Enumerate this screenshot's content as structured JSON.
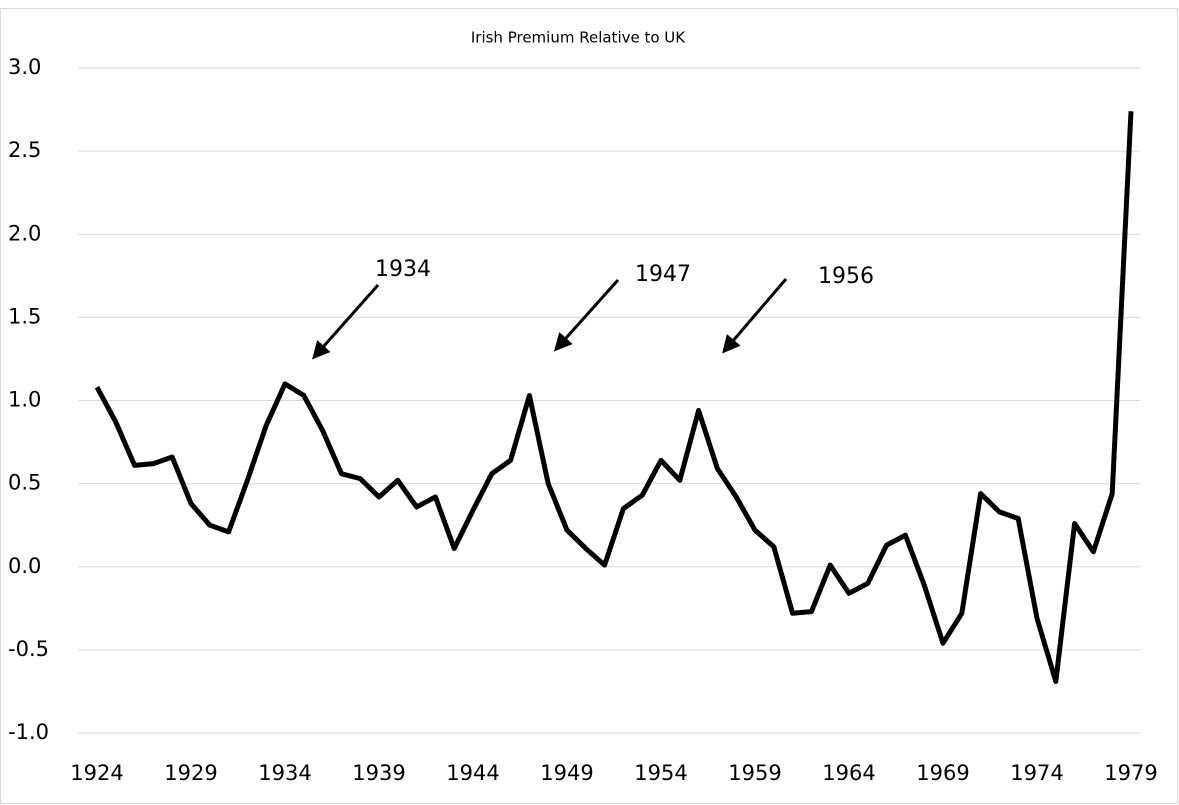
{
  "chart_data": {
    "type": "line",
    "title": "Irish Premium Relative to UK",
    "x": [
      1924,
      1925,
      1926,
      1927,
      1928,
      1929,
      1930,
      1931,
      1932,
      1933,
      1934,
      1935,
      1936,
      1937,
      1938,
      1939,
      1940,
      1941,
      1942,
      1943,
      1944,
      1945,
      1946,
      1947,
      1948,
      1949,
      1950,
      1951,
      1952,
      1953,
      1954,
      1955,
      1956,
      1957,
      1958,
      1959,
      1960,
      1961,
      1962,
      1963,
      1964,
      1965,
      1966,
      1967,
      1968,
      1969,
      1970,
      1971,
      1972,
      1973,
      1974,
      1975,
      1976,
      1977,
      1978,
      1979
    ],
    "values": [
      1.08,
      0.87,
      0.61,
      0.62,
      0.66,
      0.38,
      0.25,
      0.21,
      0.52,
      0.85,
      1.1,
      1.03,
      0.82,
      0.56,
      0.53,
      0.42,
      0.52,
      0.36,
      0.42,
      0.11,
      0.34,
      0.56,
      0.64,
      1.03,
      0.5,
      0.22,
      0.11,
      0.01,
      0.35,
      0.43,
      0.64,
      0.52,
      0.94,
      0.59,
      0.42,
      0.22,
      0.12,
      -0.28,
      -0.27,
      0.01,
      -0.16,
      -0.1,
      0.13,
      0.19,
      -0.11,
      -0.46,
      -0.28,
      0.44,
      0.33,
      0.29,
      -0.31,
      -0.69,
      0.26,
      0.09,
      0.44,
      2.74
    ],
    "color": "#000000",
    "xlim": [
      1923,
      1980
    ],
    "xticks": [
      1924,
      1929,
      1934,
      1939,
      1944,
      1949,
      1954,
      1959,
      1964,
      1969,
      1974,
      1979
    ],
    "ylim": [
      -1,
      3
    ],
    "yticks": [
      {
        "value": -1,
        "label": "-1.0"
      },
      -0.5,
      {
        "value": 0,
        "label": "0.0"
      },
      0.5,
      {
        "value": 1,
        "label": "1.0"
      },
      1.5,
      {
        "value": 2,
        "label": "2.0"
      },
      2.5,
      {
        "value": 3,
        "label": "3.0"
      }
    ],
    "grid": true,
    "annotations": [
      "1934",
      "1947",
      "1956"
    ]
  }
}
